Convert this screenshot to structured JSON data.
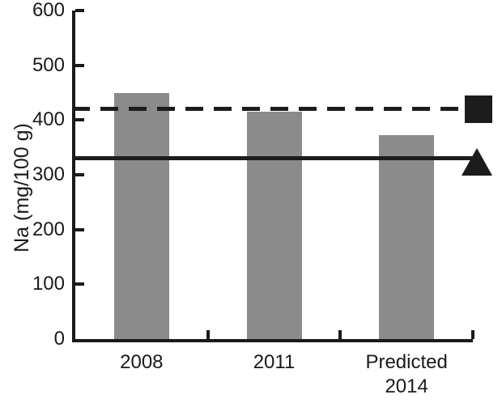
{
  "chart_data": {
    "type": "bar",
    "title": "",
    "ylabel": "Na (mg/100 g)",
    "xlabel": "",
    "ylim": [
      0,
      600
    ],
    "ytick_step": 100,
    "ytick_labels": [
      "0",
      "100",
      "200",
      "300",
      "400",
      "500",
      "600"
    ],
    "categories": [
      "2008",
      "2011",
      "Predicted\n2014"
    ],
    "series": [
      {
        "name": "Na per 100 g",
        "values": [
          450,
          415,
          372
        ]
      }
    ],
    "reference_lines": [
      {
        "name": "upper-reference",
        "style": "dashed",
        "value": 420,
        "marker": "square"
      },
      {
        "name": "lower-reference",
        "style": "solid",
        "value": 330,
        "marker": "triangle"
      }
    ],
    "colors": {
      "bar": "#8b8b8b",
      "line": "#1c1c1c",
      "text": "#1a1a1a",
      "background": "#ffffff"
    },
    "legend": "none",
    "grid": false
  }
}
